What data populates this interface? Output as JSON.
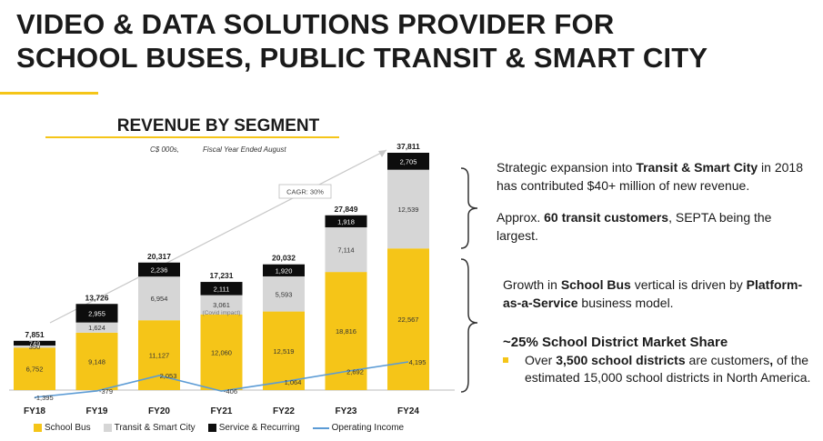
{
  "title_lines": [
    "VIDEO & DATA SOLUTIONS PROVIDER FOR",
    "SCHOOL BUSES, PUBLIC TRANSIT & SMART CITY"
  ],
  "chart_data": {
    "type": "bar",
    "title": "REVENUE BY SEGMENT",
    "units": "C$ 000s,",
    "period_note": "Fiscal Year Ended August",
    "categories": [
      "FY18",
      "FY19",
      "FY20",
      "FY21",
      "FY22",
      "FY23",
      "FY24"
    ],
    "stacked": true,
    "series": [
      {
        "name": "School Bus",
        "values": [
          6752,
          9148,
          11127,
          12060,
          12519,
          18816,
          22567
        ],
        "color": "#f5c518"
      },
      {
        "name": "Transit & Smart City",
        "values": [
          350,
          1624,
          6954,
          3061,
          5593,
          7114,
          12539
        ],
        "color": "#d6d6d6"
      },
      {
        "name": "Service & Recurring",
        "values": [
          749,
          2955,
          2236,
          2111,
          1920,
          1918,
          2705
        ],
        "color": "#0d0d0d"
      }
    ],
    "totals": [
      7851,
      13726,
      20317,
      17231,
      20032,
      27849,
      37811
    ],
    "operating_income": {
      "name": "Operating Income",
      "values": [
        -1395,
        -379,
        2053,
        -406,
        1064,
        2692,
        4195
      ],
      "color": "#5b9bd5"
    },
    "annotations": [
      {
        "category": "FY21",
        "text": "(Covid impact)"
      },
      {
        "text": "CAGR: 30%"
      }
    ],
    "ylim": [
      -2000,
      39000
    ],
    "legend_position": "bottom"
  },
  "notes": {
    "transit_1_pre": "Strategic expansion into ",
    "transit_1_bold": "Transit & Smart City",
    "transit_1_post": " in 2018 has contributed $40+ million of new revenue.",
    "transit_2_pre": "Approx. ",
    "transit_2_bold": "60 transit customers",
    "transit_2_post": ", SEPTA being the largest.",
    "bus_pre": "Growth in ",
    "bus_bold1": "School Bus",
    "bus_mid": " vertical is driven by ",
    "bus_bold2": "Platform-as-a-Service",
    "bus_post": " business model.",
    "market_share": "~25% School District Market Share",
    "bullet_pre": "Over ",
    "bullet_bold1": "3,500 school districts",
    "bullet_mid": " are customers",
    "bullet_bold2": ",",
    "bullet_post": " of the estimated 15,000 school districts in North America."
  }
}
